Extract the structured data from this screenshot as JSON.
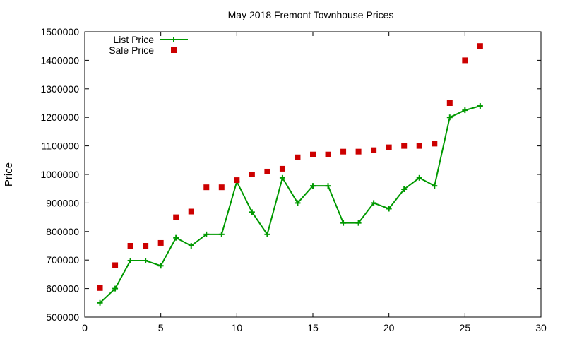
{
  "chart_data": {
    "type": "scatter",
    "title": "May 2018 Fremont Townhouse Prices",
    "xlabel": "",
    "ylabel": "Price",
    "xlim": [
      0,
      30
    ],
    "ylim": [
      500000,
      1500000
    ],
    "x_ticks": [
      0,
      5,
      10,
      15,
      20,
      25,
      30
    ],
    "y_ticks": [
      500000,
      600000,
      700000,
      800000,
      900000,
      1000000,
      1100000,
      1200000,
      1300000,
      1400000,
      1500000
    ],
    "grid": false,
    "legend_position": "top-left",
    "series": [
      {
        "name": "List Price",
        "style": "line-points",
        "marker": "plus",
        "color": "#009900",
        "x": [
          1,
          2,
          3,
          4,
          5,
          6,
          7,
          8,
          9,
          10,
          11,
          12,
          13,
          14,
          15,
          16,
          17,
          18,
          19,
          20,
          21,
          22,
          23,
          24,
          25,
          26
        ],
        "y": [
          550000,
          600000,
          698000,
          698000,
          680000,
          778000,
          750000,
          790000,
          790000,
          975000,
          868000,
          790000,
          988000,
          900000,
          960000,
          960000,
          830000,
          830000,
          900000,
          880000,
          948000,
          988000,
          960000,
          1200000,
          1225000,
          1240000
        ]
      },
      {
        "name": "Sale Price",
        "style": "points",
        "marker": "square",
        "color": "#cc0000",
        "x": [
          1,
          2,
          3,
          4,
          5,
          6,
          7,
          8,
          9,
          10,
          11,
          12,
          13,
          14,
          15,
          16,
          17,
          18,
          19,
          20,
          21,
          22,
          23,
          24,
          25,
          26
        ],
        "y": [
          602000,
          682000,
          750000,
          750000,
          760000,
          850000,
          870000,
          955000,
          955000,
          980000,
          1000000,
          1010000,
          1020000,
          1060000,
          1070000,
          1070000,
          1080000,
          1080000,
          1085000,
          1095000,
          1100000,
          1100000,
          1108000,
          1250000,
          1400000,
          1450000
        ]
      }
    ]
  }
}
